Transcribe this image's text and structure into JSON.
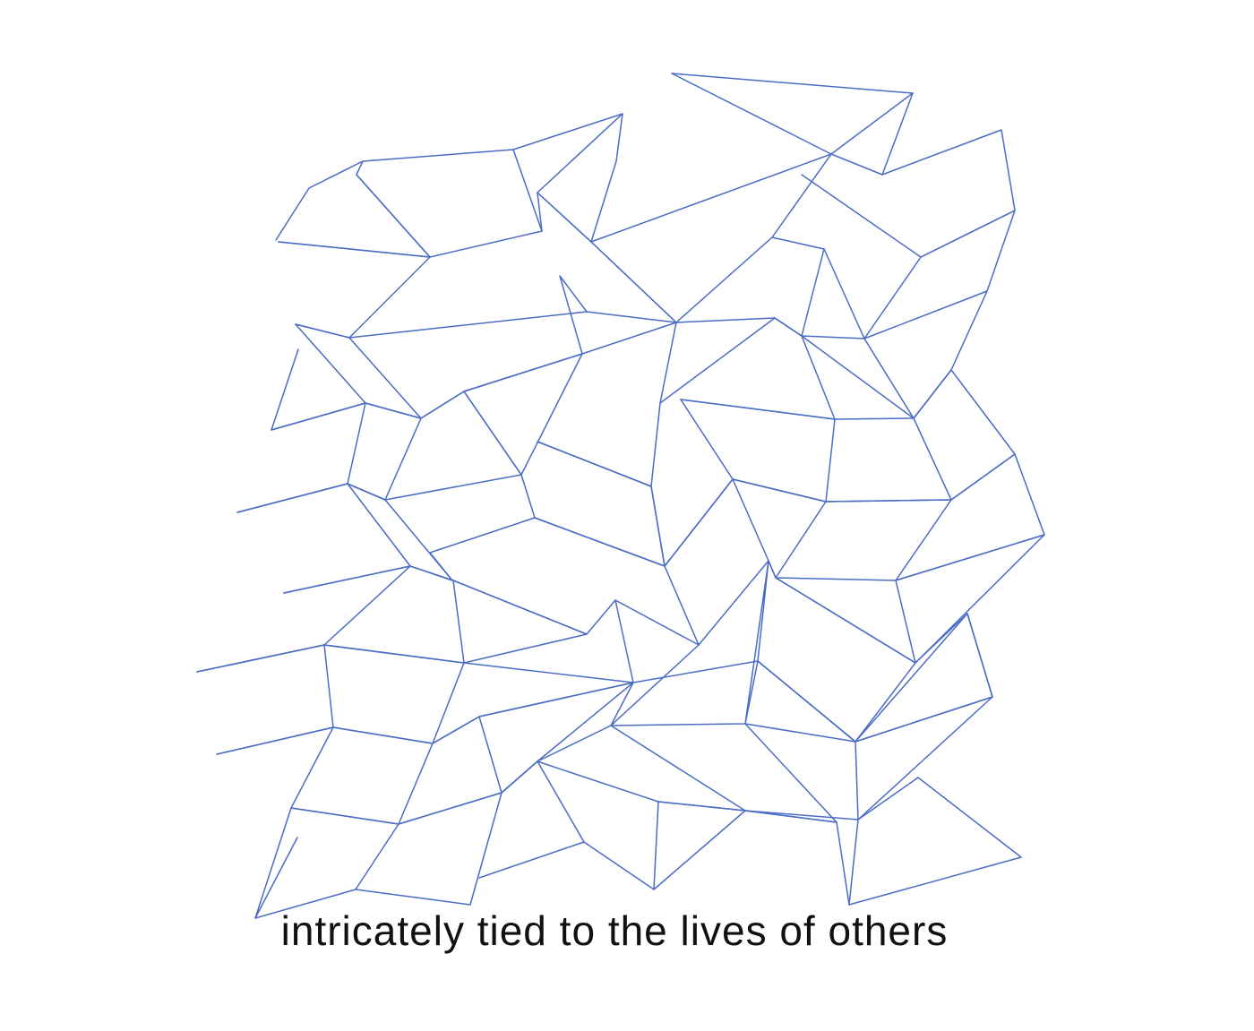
{
  "caption": "intricately tied to the lives of others",
  "colors": {
    "background": "#ffffff",
    "line": "#4a6cc4",
    "text": "#111111"
  }
}
